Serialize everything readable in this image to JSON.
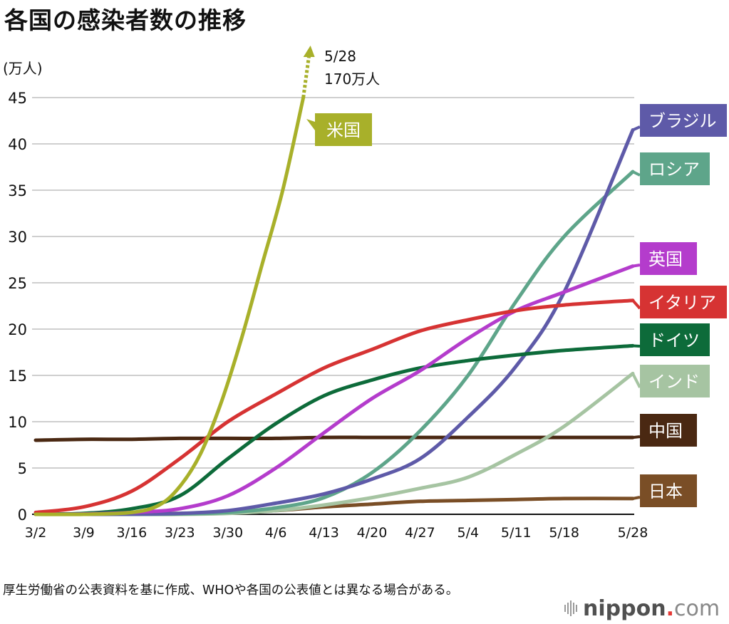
{
  "title": "各国の感染者数の推移",
  "unit_label": "(万人)",
  "note": "厚生労働省の公表資料を基に作成、WHOや各国の公表値とは異なる場合がある。",
  "logo": {
    "name": "nippon",
    "dot": ".",
    "suffix": "com",
    "text": "nippon.com"
  },
  "us_annotation": {
    "date": "5/28",
    "value_label": "170万人"
  },
  "chart_data": {
    "type": "line",
    "title": "各国の感染者数の推移",
    "ylabel": "(万人)",
    "xlabel": "",
    "ylim": [
      0,
      45
    ],
    "yticks": [
      0,
      5,
      10,
      15,
      20,
      25,
      30,
      35,
      40,
      45
    ],
    "xlim_days": [
      0,
      87
    ],
    "xtick_labels": [
      "3/2",
      "3/9",
      "3/16",
      "3/23",
      "3/30",
      "4/6",
      "4/13",
      "4/20",
      "4/27",
      "5/4",
      "5/11",
      "5/18",
      "5/28"
    ],
    "xtick_days": [
      0,
      7,
      14,
      21,
      28,
      35,
      42,
      49,
      56,
      63,
      70,
      77,
      87
    ],
    "grid": true,
    "legend": "direct-labels-right",
    "x_days": [
      0,
      7,
      14,
      21,
      28,
      35,
      42,
      49,
      56,
      63,
      70,
      77,
      87
    ],
    "series": [
      {
        "name": "米国",
        "color": "#a8b02a",
        "x_days": [
          0,
          7,
          14,
          18,
          21,
          24,
          27,
          30,
          33,
          36,
          39
        ],
        "values": [
          0,
          0,
          0.2,
          1,
          3,
          6.5,
          12,
          19,
          27,
          35,
          45
        ],
        "arrow_to": "5/28",
        "end_value_label": "170万人"
      },
      {
        "name": "ブラジル",
        "color": "#5e5aa8",
        "values": [
          0,
          0,
          0.02,
          0.1,
          0.4,
          1.2,
          2.2,
          3.8,
          6,
          10.5,
          16,
          24,
          41.5
        ]
      },
      {
        "name": "ロシア",
        "color": "#5ea58a",
        "values": [
          0,
          0,
          0,
          0.05,
          0.2,
          0.7,
          1.8,
          4.5,
          9,
          15,
          23,
          30,
          37
        ]
      },
      {
        "name": "英国",
        "color": "#b43ccc",
        "values": [
          0,
          0.03,
          0.2,
          0.6,
          2,
          5,
          8.8,
          12.5,
          15.5,
          19,
          22,
          24,
          26.8
        ]
      },
      {
        "name": "イタリア",
        "color": "#d63333",
        "values": [
          0.2,
          0.8,
          2.5,
          6,
          10,
          13,
          15.8,
          17.8,
          19.8,
          21,
          22,
          22.6,
          23.1
        ]
      },
      {
        "name": "ドイツ",
        "color": "#0d6b3a",
        "values": [
          0,
          0.1,
          0.6,
          2,
          6,
          9.8,
          12.8,
          14.5,
          15.8,
          16.6,
          17.2,
          17.7,
          18.2
        ]
      },
      {
        "name": "インド",
        "color": "#a6c4a2",
        "values": [
          0,
          0,
          0,
          0,
          0.1,
          0.4,
          1,
          1.8,
          2.8,
          4,
          6.5,
          9.5,
          15.2
        ]
      },
      {
        "name": "中国",
        "color": "#4a2812",
        "values": [
          8,
          8.1,
          8.1,
          8.2,
          8.2,
          8.2,
          8.3,
          8.3,
          8.3,
          8.3,
          8.3,
          8.3,
          8.3
        ]
      },
      {
        "name": "日本",
        "color": "#7a4e26",
        "values": [
          0,
          0.04,
          0.08,
          0.1,
          0.2,
          0.4,
          0.8,
          1.1,
          1.4,
          1.5,
          1.6,
          1.7,
          1.7
        ]
      }
    ]
  }
}
